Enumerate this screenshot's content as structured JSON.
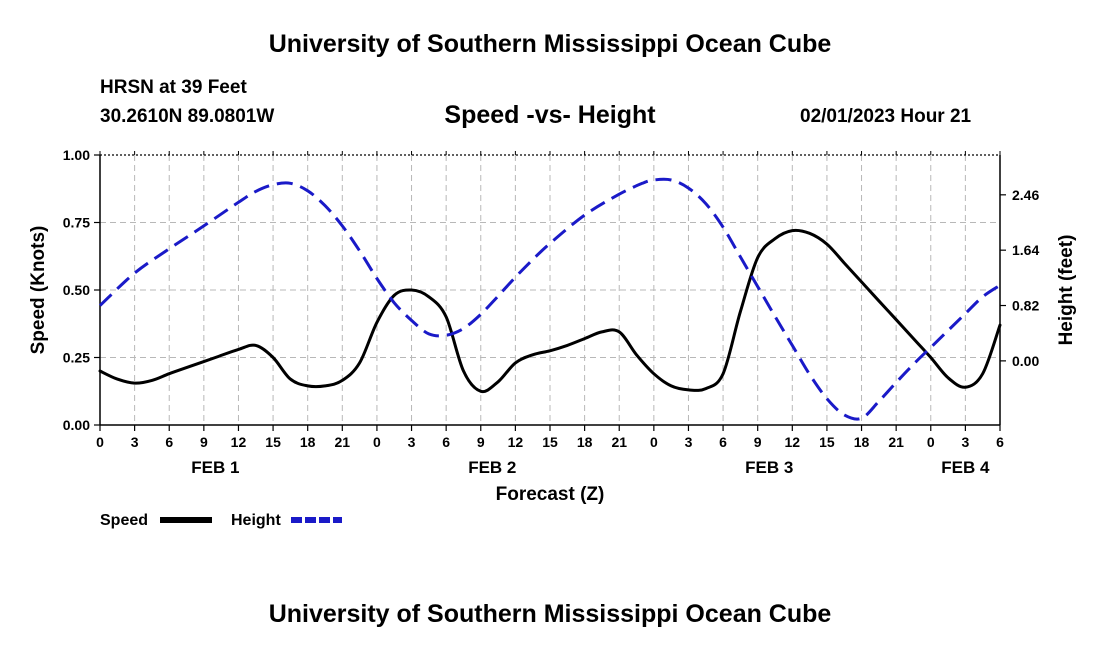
{
  "header": {
    "title": "University of Southern Mississippi Ocean Cube",
    "station": "HRSN at 39 Feet",
    "coords": "30.2610N  89.0801W",
    "subtitle": "Speed -vs- Height",
    "datetime": "02/01/2023 Hour 21"
  },
  "footer": {
    "title": "University of Southern Mississippi Ocean Cube"
  },
  "chart_data": {
    "type": "line",
    "title": "Speed -vs- Height",
    "xlabel": "Forecast (Z)",
    "ylabel": "Speed (Knots)",
    "y2label": "Height (feet)",
    "x_range_hours": [
      0,
      78
    ],
    "x_tick_step_hours": 3,
    "x_tick_labels": [
      "0",
      "3",
      "6",
      "9",
      "12",
      "15",
      "18",
      "21",
      "0",
      "3",
      "6",
      "9",
      "12",
      "15",
      "18",
      "21",
      "0",
      "3",
      "6",
      "9",
      "12",
      "15",
      "18",
      "21",
      "0",
      "3",
      "6"
    ],
    "day_labels": [
      {
        "label": "FEB 1",
        "hour": 10
      },
      {
        "label": "FEB 2",
        "hour": 34
      },
      {
        "label": "FEB 3",
        "hour": 58
      },
      {
        "label": "FEB 4",
        "hour": 75
      }
    ],
    "ylim": [
      0,
      1.0
    ],
    "y_ticks": [
      0,
      0.25,
      0.5,
      0.75,
      1.0
    ],
    "y_tick_labels": [
      "0.00",
      "0.25",
      "0.50",
      "0.75",
      "1.00"
    ],
    "y2lim": [
      -0.95,
      3.05
    ],
    "y2_ticks": [
      0,
      0.82,
      1.64,
      2.46
    ],
    "y2_tick_labels": [
      "0.00",
      "0.82",
      "1.64",
      "2.46"
    ],
    "grid": true,
    "legend": {
      "position": "bottom-left",
      "entries": [
        {
          "name": "Speed",
          "color": "#000000",
          "style": "solid"
        },
        {
          "name": "Height",
          "color": "#1a1ac8",
          "style": "dashed"
        }
      ]
    },
    "series": [
      {
        "name": "Speed",
        "axis": "left",
        "color": "#000000",
        "style": "solid",
        "x": [
          0,
          1.5,
          3,
          4.5,
          6,
          8,
          10,
          12,
          13.5,
          15,
          16.5,
          18,
          19.5,
          21,
          22.5,
          24,
          25.5,
          27,
          28.5,
          30,
          31.5,
          33,
          34.5,
          36,
          37.5,
          39,
          40.5,
          42,
          43.5,
          45,
          46.5,
          48,
          49.5,
          51,
          52.5,
          54,
          55.5,
          57,
          58.5,
          60,
          61.5,
          63,
          64.5,
          66,
          67.5,
          69,
          70.5,
          72,
          73.5,
          75,
          76.5,
          78
        ],
        "values": [
          0.2,
          0.17,
          0.155,
          0.165,
          0.19,
          0.22,
          0.25,
          0.28,
          0.295,
          0.25,
          0.17,
          0.145,
          0.145,
          0.165,
          0.23,
          0.38,
          0.48,
          0.5,
          0.475,
          0.4,
          0.2,
          0.125,
          0.16,
          0.23,
          0.26,
          0.275,
          0.295,
          0.32,
          0.345,
          0.345,
          0.26,
          0.19,
          0.145,
          0.13,
          0.135,
          0.19,
          0.42,
          0.62,
          0.69,
          0.72,
          0.71,
          0.67,
          0.6,
          0.53,
          0.46,
          0.39,
          0.32,
          0.25,
          0.175,
          0.14,
          0.19,
          0.37
        ]
      },
      {
        "name": "Height",
        "axis": "right",
        "color": "#1a1ac8",
        "style": "dashed",
        "x": [
          0,
          3,
          6,
          9,
          12,
          13.5,
          15,
          16.5,
          18,
          19.5,
          21,
          22.5,
          24,
          25.5,
          27,
          28.5,
          30,
          31.5,
          33,
          34.5,
          36,
          37.5,
          39,
          42,
          45,
          47,
          48,
          49.5,
          51,
          52.5,
          54,
          55.5,
          57,
          58.5,
          60,
          61.5,
          63,
          64.5,
          66,
          67.5,
          69,
          70.5,
          72,
          73.5,
          75,
          76.5,
          78
        ],
        "values": [
          0.82,
          1.3,
          1.66,
          2.0,
          2.35,
          2.51,
          2.61,
          2.63,
          2.52,
          2.3,
          2.0,
          1.63,
          1.22,
          0.86,
          0.6,
          0.4,
          0.38,
          0.48,
          0.69,
          0.96,
          1.24,
          1.5,
          1.74,
          2.16,
          2.47,
          2.63,
          2.68,
          2.68,
          2.56,
          2.33,
          1.98,
          1.54,
          1.1,
          0.66,
          0.23,
          -0.2,
          -0.56,
          -0.8,
          -0.85,
          -0.6,
          -0.32,
          -0.05,
          0.2,
          0.45,
          0.7,
          0.95,
          1.12
        ]
      }
    ]
  }
}
